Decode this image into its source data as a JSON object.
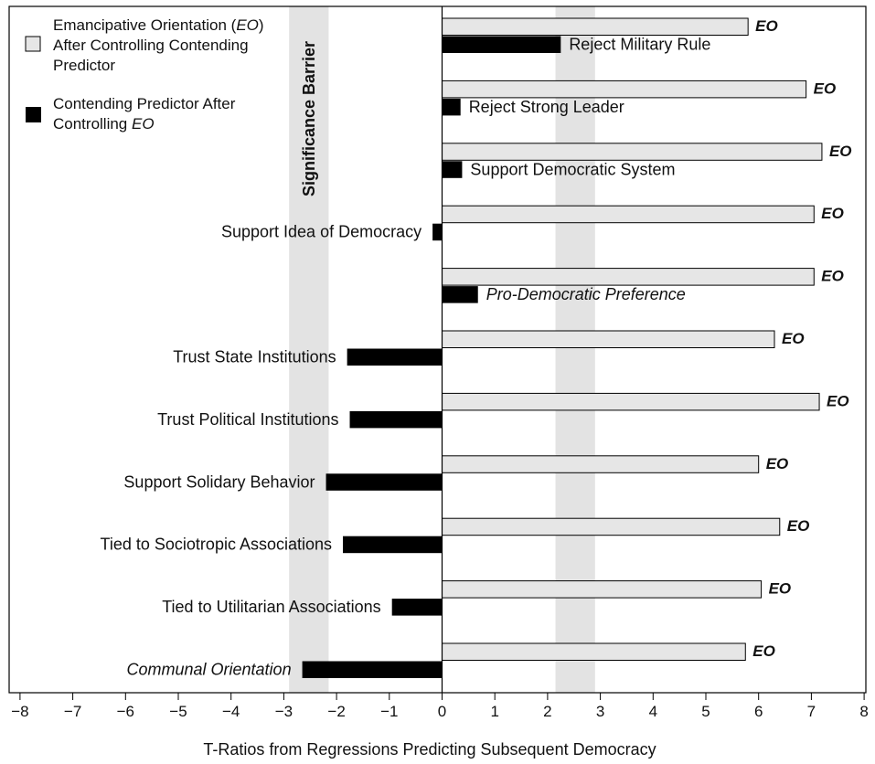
{
  "chart_data": {
    "type": "bar",
    "orientation": "horizontal",
    "xlabel": "T-Ratios from Regressions Predicting Subsequent Democracy",
    "xlim": [
      -8,
      8
    ],
    "xticks": [
      "−8",
      "−7",
      "−6",
      "−5",
      "−4",
      "−3",
      "−2",
      "−1",
      "0",
      "1",
      "2",
      "3",
      "4",
      "5",
      "6",
      "7",
      "8"
    ],
    "significance_label": "Significance Barrier",
    "significance_bands": [
      [
        -2.9,
        -2.15
      ],
      [
        2.15,
        2.9
      ]
    ],
    "legend": {
      "position": "top-left",
      "entries": [
        {
          "key": "eo",
          "lines": [
            "Emancipative Orientation (EO)",
            "After Controlling Contending",
            "Predictor"
          ]
        },
        {
          "key": "cp",
          "lines": [
            "Contending Predictor After",
            "Controlling EO"
          ]
        }
      ]
    },
    "eo_label": "EO",
    "series": [
      {
        "name": "Emancipative Orientation (EO) After Controlling Contending Predictor",
        "color": "#e6e6e6",
        "values": [
          5.8,
          6.9,
          7.2,
          7.05,
          7.05,
          6.3,
          7.15,
          6.0,
          6.4,
          6.05,
          5.75
        ]
      },
      {
        "name": "Contending Predictor After Controlling EO",
        "color": "#000000",
        "values": [
          2.25,
          0.35,
          0.38,
          -0.18,
          0.68,
          -1.8,
          -1.75,
          -2.2,
          -1.88,
          -0.95,
          -2.65
        ]
      }
    ],
    "categories": [
      {
        "label": "Reject Military Rule",
        "italic": false
      },
      {
        "label": "Reject Strong Leader",
        "italic": false
      },
      {
        "label": "Support Democratic System",
        "italic": false
      },
      {
        "label": "Support Idea of Democracy",
        "italic": false
      },
      {
        "label": "Pro-Democratic Preference",
        "italic": true
      },
      {
        "label": "Trust State Institutions",
        "italic": false
      },
      {
        "label": "Trust Political Institutions",
        "italic": false
      },
      {
        "label": "Support Solidary Behavior",
        "italic": false
      },
      {
        "label": "Tied to Sociotropic Associations",
        "italic": false
      },
      {
        "label": "Tied to Utilitarian Associations",
        "italic": false
      },
      {
        "label": "Communal Orientation",
        "italic": true
      }
    ]
  }
}
